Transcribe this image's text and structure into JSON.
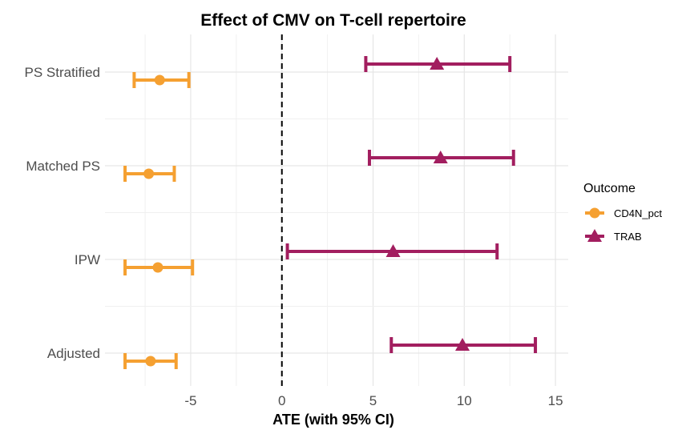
{
  "chart_data": {
    "type": "forest",
    "title": "Effect of CMV on T-cell repertoire",
    "xlabel": "ATE (with 95% CI)",
    "ylabel": "",
    "xlim": [
      -9.7,
      15.7
    ],
    "x_ticks": [
      -5,
      0,
      5,
      10,
      15
    ],
    "categories": [
      "PS Stratified",
      "Matched PS",
      "IPW",
      "Adjusted"
    ],
    "reference_line": 0,
    "grid": true,
    "legend": {
      "title": "Outcome",
      "position": "right"
    },
    "series": [
      {
        "name": "CD4N_pct",
        "color": "#F5A031",
        "marker": "circle",
        "points": [
          {
            "category": "PS Stratified",
            "estimate": -6.7,
            "lower": -8.1,
            "upper": -5.1
          },
          {
            "category": "Matched PS",
            "estimate": -7.3,
            "lower": -8.6,
            "upper": -5.9
          },
          {
            "category": "IPW",
            "estimate": -6.8,
            "lower": -8.6,
            "upper": -4.9
          },
          {
            "category": "Adjusted",
            "estimate": -7.2,
            "lower": -8.6,
            "upper": -5.8
          }
        ]
      },
      {
        "name": "TRAB",
        "color": "#A21E5F",
        "marker": "triangle",
        "points": [
          {
            "category": "PS Stratified",
            "estimate": 8.5,
            "lower": 4.6,
            "upper": 12.5
          },
          {
            "category": "Matched PS",
            "estimate": 8.7,
            "lower": 4.8,
            "upper": 12.7
          },
          {
            "category": "IPW",
            "estimate": 6.1,
            "lower": 0.3,
            "upper": 11.8
          },
          {
            "category": "Adjusted",
            "estimate": 9.9,
            "lower": 6.0,
            "upper": 13.9
          }
        ]
      }
    ]
  }
}
